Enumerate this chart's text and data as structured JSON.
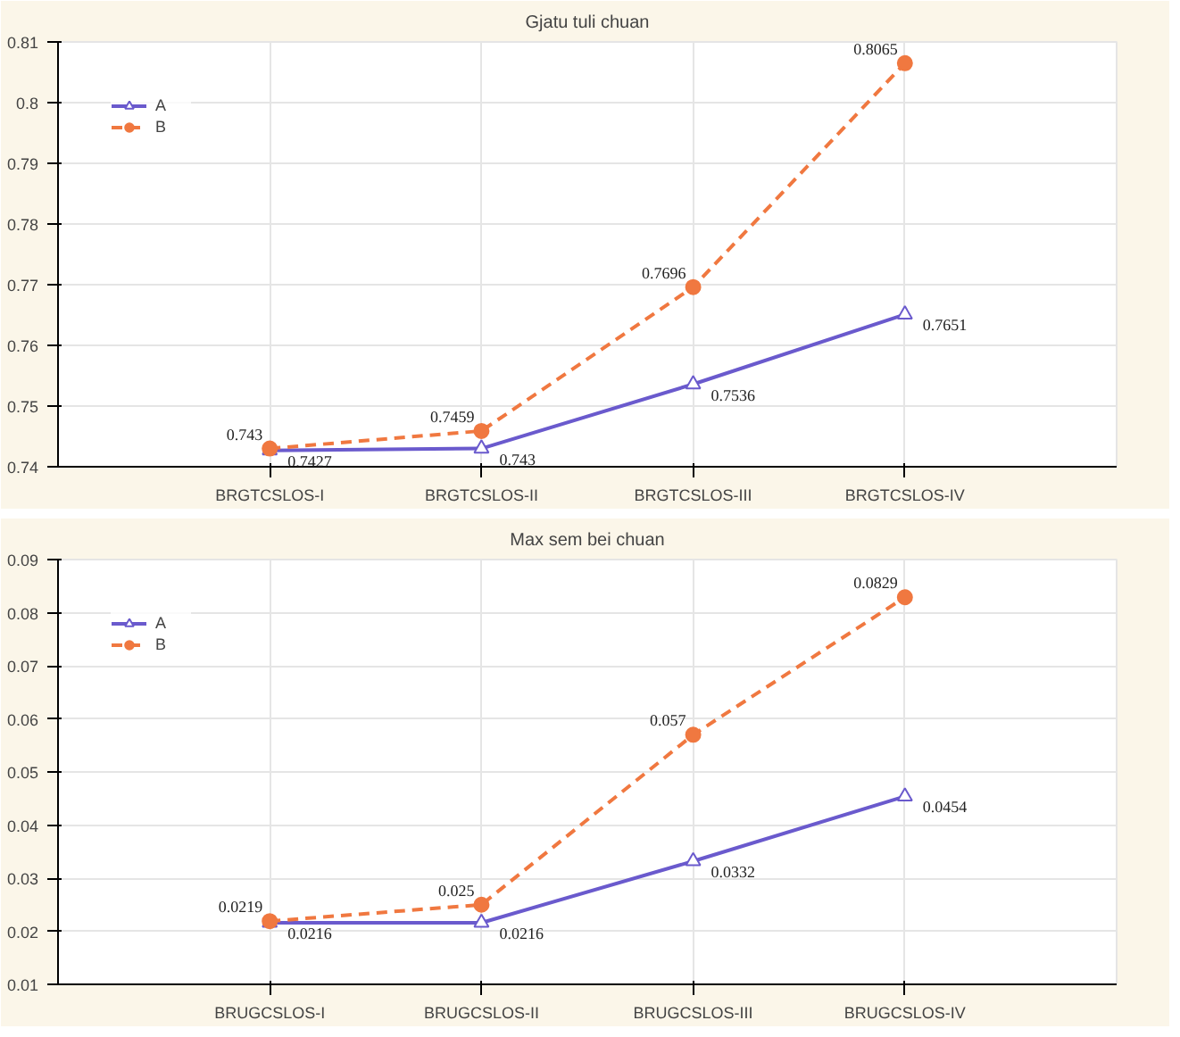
{
  "chart_data": [
    {
      "type": "line",
      "title": "Gjatu tuli chuan",
      "categories": [
        "BRGTCSLOS-I",
        "BRGTCSLOS-II",
        "BRGTCSLOS-III",
        "BRGTCSLOS-IV"
      ],
      "series": [
        {
          "name": "A",
          "color": "#6a5acd",
          "values": [
            0.7427,
            0.743,
            0.7536,
            0.7651
          ],
          "value_labels": [
            "0.7427",
            "0.743",
            "0.7536",
            "0.7651"
          ],
          "line_style": "solid",
          "marker": "triangle"
        },
        {
          "name": "B",
          "color": "#f07840",
          "values": [
            0.743,
            0.7459,
            0.7696,
            0.8065
          ],
          "value_labels": [
            "0.743",
            "0.7459",
            "0.7696",
            "0.8065"
          ],
          "line_style": "dashed",
          "marker": "circle"
        }
      ],
      "ylim": [
        0.74,
        0.81
      ],
      "yticks": [
        0.74,
        0.75,
        0.76,
        0.77,
        0.78,
        0.79,
        0.8,
        0.81
      ],
      "grid": true,
      "legend": "top left"
    },
    {
      "type": "line",
      "title": "Max sem bei chuan",
      "categories": [
        "BRUGCSLOS-I",
        "BRUGCSLOS-II",
        "BRUGCSLOS-III",
        "BRUGCSLOS-IV"
      ],
      "series": [
        {
          "name": "A",
          "color": "#6a5acd",
          "values": [
            0.0216,
            0.0216,
            0.0332,
            0.0454
          ],
          "value_labels": [
            "0.0216",
            "0.0216",
            "0.0332",
            "0.0454"
          ],
          "line_style": "solid",
          "marker": "triangle"
        },
        {
          "name": "B",
          "color": "#f07840",
          "values": [
            0.0219,
            0.025,
            0.057,
            0.0829
          ],
          "value_labels": [
            "0.0219",
            "0.025",
            "0.057",
            "0.0829"
          ],
          "line_style": "dashed",
          "marker": "circle"
        }
      ],
      "ylim": [
        0.01,
        0.09
      ],
      "yticks": [
        0.01,
        0.02,
        0.03,
        0.04,
        0.05,
        0.06,
        0.07,
        0.08,
        0.09
      ],
      "grid": true,
      "legend": "top left"
    }
  ]
}
